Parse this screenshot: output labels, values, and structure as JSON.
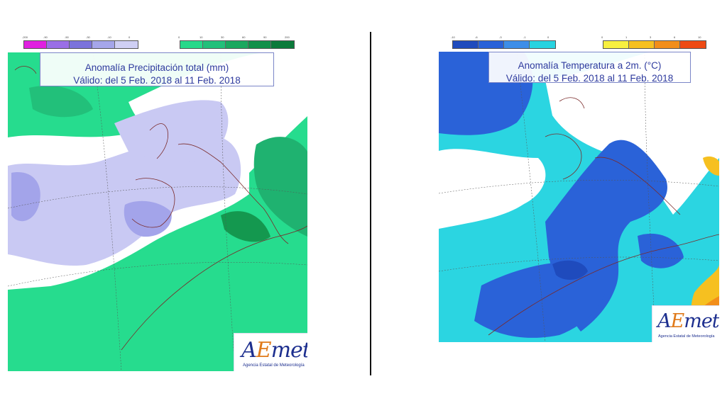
{
  "left_map": {
    "title_line1": "Anomalía Precipitación total (mm)",
    "title_line2": "Válido: del 5 Feb. 2018 al 11 Feb. 2018",
    "legend_negative": {
      "ticks": [
        "-200",
        "-90",
        "-50",
        "-30",
        "-10",
        "0"
      ],
      "colors": [
        "#e020e0",
        "#9a6fe6",
        "#7b73dc",
        "#a5a6ea",
        "#cfcff4"
      ]
    },
    "legend_positive": {
      "ticks": [
        "0",
        "10",
        "30",
        "60",
        "90",
        "200"
      ],
      "colors": [
        "#26d98a",
        "#22c07a",
        "#1aa85f",
        "#11904a",
        "#0b7a3a"
      ]
    }
  },
  "right_map": {
    "title_line1": "Anomalía Temperatura a 2m. (°C)",
    "title_line2": "Válido: del 5 Feb. 2018 al 11 Feb. 2018",
    "legend_negative": {
      "ticks": [
        "-10",
        "-6",
        "-3",
        "-1",
        "0"
      ],
      "colors": [
        "#1f4bbd",
        "#2a62d8",
        "#3d8ee8",
        "#27d3e0"
      ]
    },
    "legend_positive": {
      "ticks": [
        "0",
        "1",
        "3",
        "6",
        "10"
      ],
      "colors": [
        "#f8f040",
        "#f6c020",
        "#f28e1a",
        "#ee4a14"
      ]
    }
  },
  "logo": {
    "wordmark_a": "A",
    "wordmark_e": "E",
    "wordmark_rest": "met",
    "subtitle": "Agencia Estatal de Meteorología"
  }
}
